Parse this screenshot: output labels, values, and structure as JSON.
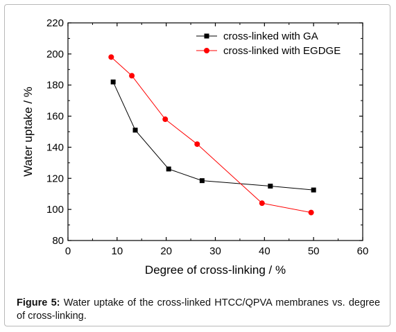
{
  "chart_data": {
    "type": "line",
    "xlabel": "Degree of cross-linking / %",
    "ylabel": "Water uptake / %",
    "xlim": [
      0,
      60
    ],
    "ylim": [
      80,
      220
    ],
    "xticks": [
      "0",
      "10",
      "20",
      "30",
      "40",
      "50",
      "60"
    ],
    "yticks": [
      "80",
      "100",
      "120",
      "140",
      "160",
      "180",
      "200",
      "220"
    ],
    "grid": false,
    "legend_position": "top-right",
    "series": [
      {
        "name": "cross-linked with GA",
        "color": "#000000",
        "marker": "square",
        "x": [
          9.2,
          13.7,
          20.5,
          27.3,
          41.2,
          50.0
        ],
        "y": [
          182,
          151,
          126,
          118.5,
          115,
          112.5
        ]
      },
      {
        "name": "cross-linked with EGDGE",
        "color": "#ff0000",
        "marker": "circle",
        "x": [
          8.8,
          13.0,
          19.8,
          26.3,
          39.5,
          49.5
        ],
        "y": [
          198,
          186,
          158,
          142,
          104,
          98
        ]
      }
    ]
  },
  "caption": {
    "label": "Figure 5:",
    "text": " Water uptake of the cross-linked HTCC/QPVA membranes vs. degree of cross-linking."
  }
}
